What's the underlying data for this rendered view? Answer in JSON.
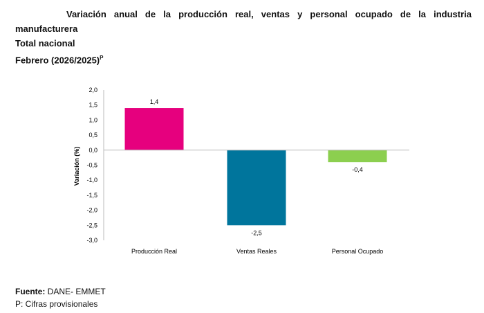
{
  "header": {
    "title": "Variación anual de la producción real, ventas y personal ocupado de la industria",
    "title_cont": "manufacturera",
    "subtitle": "Total nacional",
    "period": "Febrero (2026/2025)",
    "period_sup": "P"
  },
  "chart_data": {
    "type": "bar",
    "categories": [
      "Producción Real",
      "Ventas Reales",
      "Personal Ocupado"
    ],
    "values": [
      1.4,
      -2.5,
      -0.4
    ],
    "data_labels": [
      "1,4",
      "-2,5",
      "-0,4"
    ],
    "colors": [
      "#e6007e",
      "#00759c",
      "#8ccf4f"
    ],
    "ylabel": "Variación (%)",
    "xlabel": "",
    "ylim": [
      -3.0,
      2.0
    ],
    "yticks": [
      "2,0",
      "1,5",
      "1,0",
      "0,5",
      "0,0",
      "-0,5",
      "-1,0",
      "-1,5",
      "-2,0",
      "-2,5",
      "-3,0"
    ],
    "grid": false,
    "legend": "none"
  },
  "footer": {
    "source_label": "Fuente:",
    "source": " DANE- EMMET",
    "note": "P: Cifras provisionales"
  }
}
